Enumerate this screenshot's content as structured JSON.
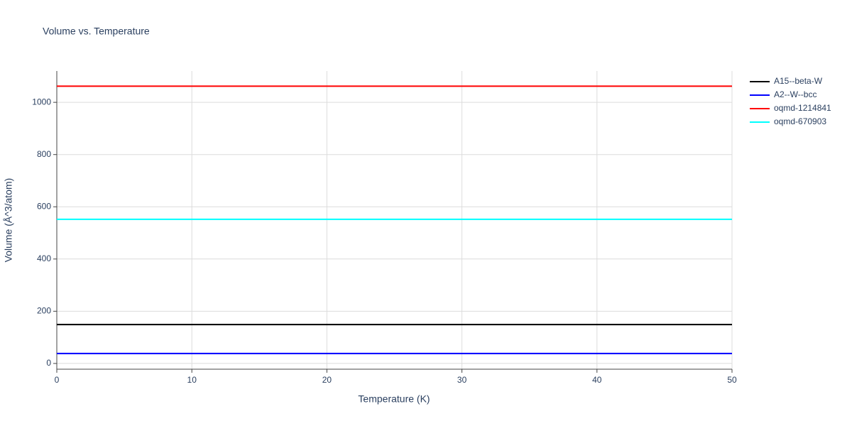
{
  "chart_data": {
    "type": "line",
    "title": "Volume vs. Temperature",
    "x_label": "Temperature (K)",
    "y_label": "Volume (Å^3/atom)",
    "x": [
      0,
      50
    ],
    "series": [
      {
        "name": "A15--beta-W",
        "color": "#000000",
        "values": [
          149,
          149
        ]
      },
      {
        "name": "A2--W--bcc",
        "color": "#0000ff",
        "values": [
          38,
          38
        ]
      },
      {
        "name": "oqmd-1214841",
        "color": "#ff0000",
        "values": [
          1062,
          1062
        ]
      },
      {
        "name": "oqmd-670903",
        "color": "#00ffff",
        "values": [
          552,
          552
        ]
      }
    ],
    "xlim": [
      0,
      50
    ],
    "xticks": [
      0,
      10,
      20,
      30,
      40,
      50
    ],
    "ylim": [
      -22,
      1120
    ],
    "yticks": [
      0,
      200,
      400,
      600,
      800,
      1000
    ],
    "grid": true,
    "legend": "right"
  }
}
